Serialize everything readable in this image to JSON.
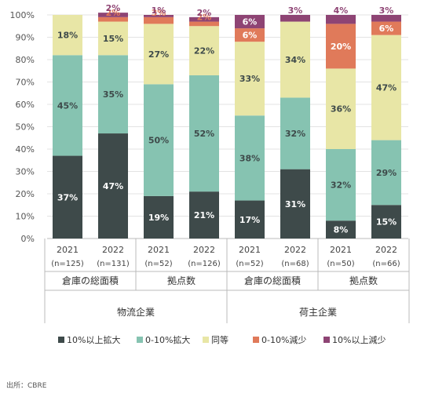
{
  "chart_data": {
    "type": "bar",
    "stacked": true,
    "yticks": [
      "0%",
      "10%",
      "20%",
      "30%",
      "40%",
      "50%",
      "60%",
      "70%",
      "80%",
      "90%",
      "100%"
    ],
    "ylim": [
      0,
      100
    ],
    "categories": [
      "2021 (n=125)",
      "2022 (n=131)",
      "2021 (n=52)",
      "2022 (n=126)",
      "2021 (n=52)",
      "2022 (n=68)",
      "2021 (n=50)",
      "2022 (n=66)"
    ],
    "year_labels": [
      "2021",
      "2022",
      "2021",
      "2022",
      "2021",
      "2022",
      "2021",
      "2022"
    ],
    "n_labels": [
      "(n=125)",
      "(n=131)",
      "(n=52)",
      "(n=126)",
      "(n=52)",
      "(n=68)",
      "(n=50)",
      "(n=66)"
    ],
    "groups_level2": [
      "倉庫の総面積",
      "拠点数",
      "倉庫の総面積",
      "拠点数"
    ],
    "groups_level1": [
      "物流企業",
      "荷主企業"
    ],
    "series": [
      {
        "name": "10%以上拡大",
        "color": "#3e4a4a",
        "text_color": "#ffffff",
        "values": [
          37,
          47,
          19,
          21,
          17,
          31,
          8,
          15
        ]
      },
      {
        "name": "0-10%拡大",
        "color": "#86c3b1",
        "text_color": "#3e4a4a",
        "values": [
          45,
          35,
          50,
          52,
          38,
          32,
          32,
          29
        ]
      },
      {
        "name": "同等",
        "color": "#e8e6a6",
        "text_color": "#3e4a4a",
        "values": [
          18,
          15,
          27,
          22,
          33,
          34,
          36,
          47
        ]
      },
      {
        "name": "0-10%減少",
        "color": "#e07a5a",
        "text_color": "#ffffff",
        "values": [
          0,
          2,
          3,
          2,
          6,
          0,
          20,
          6
        ]
      },
      {
        "name": "10%以上減少",
        "color": "#8e4474",
        "text_color": "#ffffff",
        "values": [
          0,
          2,
          1,
          2,
          6,
          3,
          4,
          3
        ]
      }
    ],
    "value_labels": [
      [
        "37%",
        "47%",
        "19%",
        "21%",
        "17%",
        "31%",
        "8%",
        "15%"
      ],
      [
        "45%",
        "35%",
        "50%",
        "52%",
        "38%",
        "32%",
        "32%",
        "29%"
      ],
      [
        "18%",
        "15%",
        "27%",
        "22%",
        "33%",
        "34%",
        "36%",
        "47%"
      ],
      [
        "",
        "2%",
        "3%",
        "2%",
        "6%",
        "",
        "20%",
        "6%"
      ],
      [
        "",
        "2%",
        "1%",
        "2%",
        "6%",
        "3%",
        "4%",
        "3%"
      ]
    ],
    "grid": true
  },
  "source": "出所：CBRE"
}
